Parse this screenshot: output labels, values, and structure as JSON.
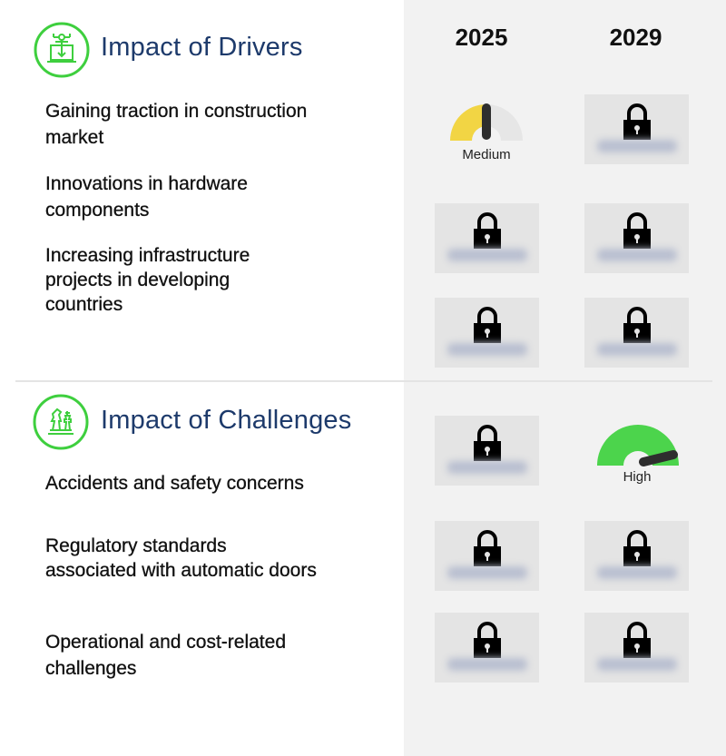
{
  "columns": [
    "2025",
    "2029"
  ],
  "drivers": {
    "title": "Impact of Drivers",
    "icon": "laptop-circuit-icon",
    "rows": [
      {
        "label": "Gaining traction in construction market",
        "y2025": {
          "gauge": "Medium",
          "level": 0.5
        },
        "y2029": {
          "locked": true
        }
      },
      {
        "label": "Innovations in hardware components",
        "y2025": {
          "locked": true
        },
        "y2029": {
          "locked": true
        }
      },
      {
        "label": "Increasing infrastructure projects in developing countries",
        "y2025": {
          "locked": true
        },
        "y2029": {
          "locked": true
        }
      }
    ]
  },
  "challenges": {
    "title": "Impact of Challenges",
    "icon": "chess-pieces-icon",
    "rows": [
      {
        "label": "Accidents and safety concerns",
        "y2025": {
          "locked": true
        },
        "y2029": {
          "gauge": "High",
          "level": 0.95
        }
      },
      {
        "label": "Regulatory standards associated with automatic doors",
        "y2025": {
          "locked": true
        },
        "y2029": {
          "locked": true
        }
      },
      {
        "label": "Operational and cost-related challenges",
        "y2025": {
          "locked": true
        },
        "y2029": {
          "locked": true
        }
      }
    ]
  },
  "colors": {
    "title": "#1d3a6b",
    "icon_ring": "#3ecf3e",
    "medium": "#f2d544",
    "high": "#4cd44c",
    "needle": "#2e2e2e"
  }
}
